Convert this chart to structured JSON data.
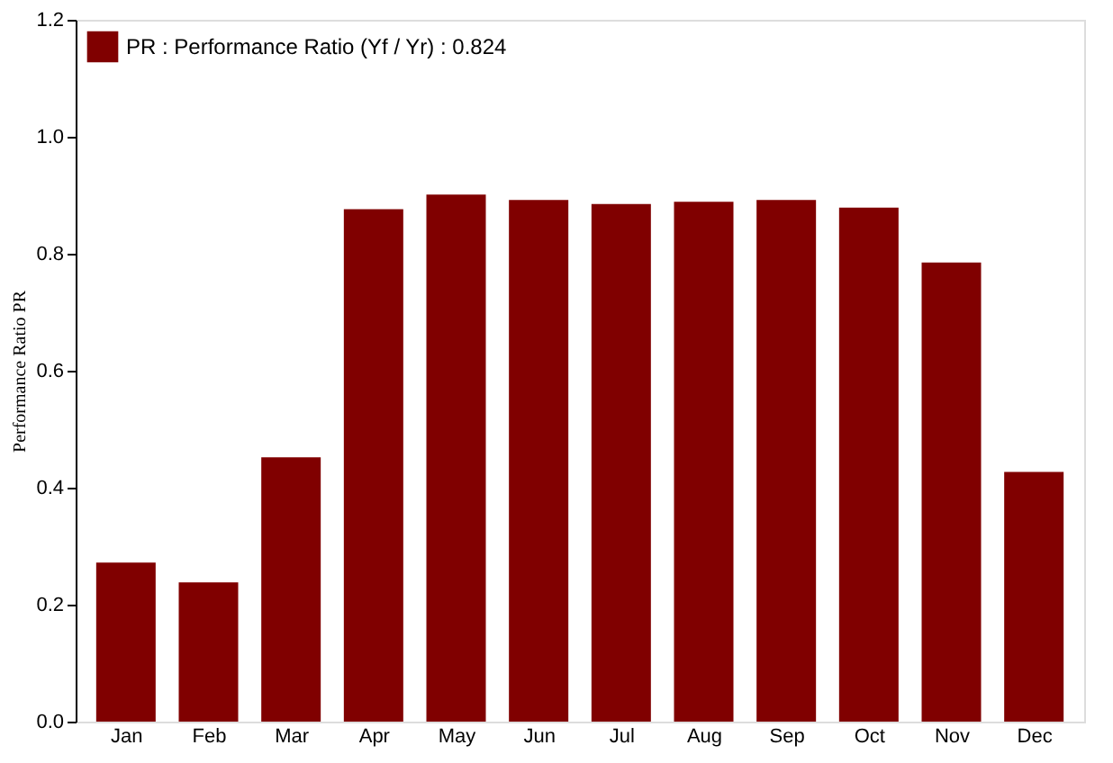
{
  "chart_data": {
    "type": "bar",
    "ylabel": "Performance Ratio PR",
    "categories": [
      "Jan",
      "Feb",
      "Mar",
      "Apr",
      "May",
      "Jun",
      "Jul",
      "Aug",
      "Sep",
      "Oct",
      "Nov",
      "Dec"
    ],
    "series": [
      {
        "name": "PR : Performance Ratio (Yf / Yr) :  0.824",
        "color": "#800000",
        "values": [
          0.272,
          0.238,
          0.452,
          0.876,
          0.901,
          0.892,
          0.885,
          0.889,
          0.892,
          0.879,
          0.785,
          0.427
        ]
      }
    ],
    "ylim": [
      0,
      1.2
    ],
    "yticks": [
      {
        "value": 0,
        "label": "0.0"
      },
      {
        "value": 0.2,
        "label": "0.2"
      },
      {
        "value": 0.4,
        "label": "0.4"
      },
      {
        "value": 0.6,
        "label": "0.6"
      },
      {
        "value": 0.8,
        "label": "0.8"
      },
      {
        "value": 1.0,
        "label": "1.0"
      },
      {
        "value": 1.2,
        "label": "1.2"
      }
    ],
    "legend": "top left",
    "grid": false
  }
}
